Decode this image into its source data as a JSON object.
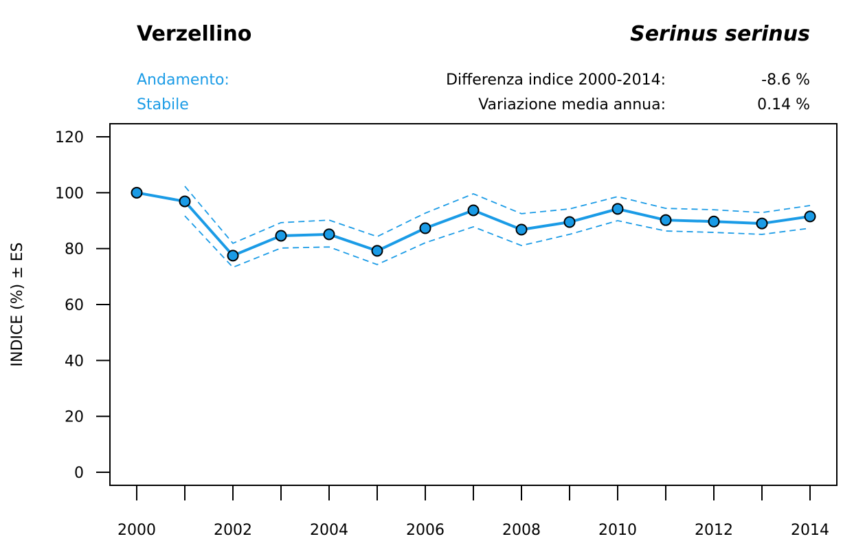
{
  "header": {
    "common_name": "Verzellino",
    "scientific_name": "Serinus serinus",
    "trend_label": "Andamento:",
    "trend_value": "Stabile",
    "stats": [
      {
        "label": "Differenza indice 2000-2014:",
        "value": "-8.6 %"
      },
      {
        "label": "Variazione media annua:",
        "value": "0.14 %"
      }
    ]
  },
  "colors": {
    "accent": "#1a9be6",
    "point_fill": "#1a9be6",
    "point_stroke": "#000000"
  },
  "chart_data": {
    "type": "line",
    "title": "Verzellino",
    "subtitle": "Serinus serinus",
    "xlabel": "",
    "ylabel": "INDICE (%) ± ES",
    "xlim": [
      2000,
      2014
    ],
    "ylim": [
      0,
      120
    ],
    "x_ticks": [
      2000,
      2001,
      2002,
      2003,
      2004,
      2005,
      2006,
      2007,
      2008,
      2009,
      2010,
      2011,
      2012,
      2013,
      2014
    ],
    "x_tick_labels": [
      "2000",
      "2002",
      "2004",
      "2006",
      "2008",
      "2010",
      "2012",
      "2014"
    ],
    "x_tick_label_values": [
      2000,
      2002,
      2004,
      2006,
      2008,
      2010,
      2012,
      2014
    ],
    "y_ticks": [
      0,
      20,
      40,
      60,
      80,
      100,
      120
    ],
    "y_tick_labels": [
      "0",
      "20",
      "40",
      "60",
      "80",
      "100",
      "120"
    ],
    "grid": false,
    "x": [
      2000,
      2001,
      2002,
      2003,
      2004,
      2005,
      2006,
      2007,
      2008,
      2009,
      2010,
      2011,
      2012,
      2013,
      2014
    ],
    "series": [
      {
        "name": "Indice",
        "style": "solid-with-markers",
        "values": [
          100,
          96.9,
          77.5,
          84.6,
          85.1,
          79.2,
          87.3,
          93.7,
          86.8,
          89.5,
          94.2,
          90.2,
          89.7,
          89.0,
          91.5
        ]
      },
      {
        "name": "Indice + ES",
        "style": "dashed",
        "values": [
          null,
          102.3,
          81.9,
          89.3,
          90.2,
          84.3,
          92.7,
          99.6,
          92.5,
          94.2,
          98.6,
          94.4,
          93.9,
          92.9,
          95.4
        ]
      },
      {
        "name": "Indice - ES",
        "style": "dashed",
        "values": [
          null,
          91.7,
          73.3,
          80.2,
          80.6,
          74.3,
          82.1,
          87.8,
          81.1,
          85.1,
          90.0,
          86.3,
          85.8,
          85.1,
          87.3
        ]
      }
    ]
  }
}
